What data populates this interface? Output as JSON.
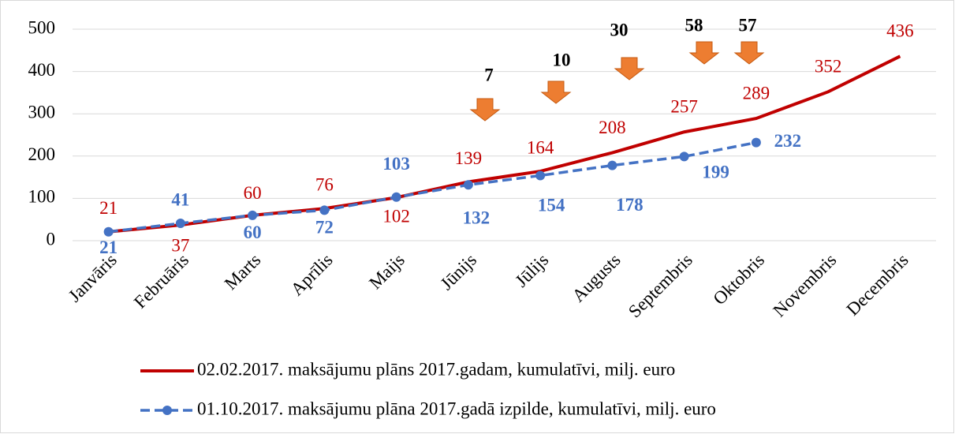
{
  "chart_data": {
    "type": "line",
    "categories": [
      "Janvāris",
      "Februāris",
      "Marts",
      "Aprīlis",
      "Maijs",
      "Jūnijs",
      "Jūlijs",
      "Augusts",
      "Septembris",
      "Oktobris",
      "Novembris",
      "Decembris"
    ],
    "series": [
      {
        "name": "02.02.2017. maksājumu plāns 2017.gadam, kumulatīvi, milj. euro",
        "color": "#c00000",
        "values": [
          21,
          37,
          60,
          76,
          102,
          139,
          164,
          208,
          257,
          289,
          352,
          436
        ]
      },
      {
        "name": "01.10.2017. maksājumu plāna 2017.gadā izpilde, kumulatīvi, milj. euro",
        "color": "#4472c4",
        "values": [
          21,
          41,
          60,
          72,
          103,
          132,
          154,
          178,
          199,
          232,
          null,
          null
        ]
      }
    ],
    "annotations": [
      7,
      10,
      30,
      58,
      57
    ],
    "annotation_color": "#ed7d31",
    "ylim": [
      0,
      500
    ],
    "yticks": [
      0,
      100,
      200,
      300,
      400,
      500
    ],
    "grid": true,
    "legend": "bottom"
  }
}
